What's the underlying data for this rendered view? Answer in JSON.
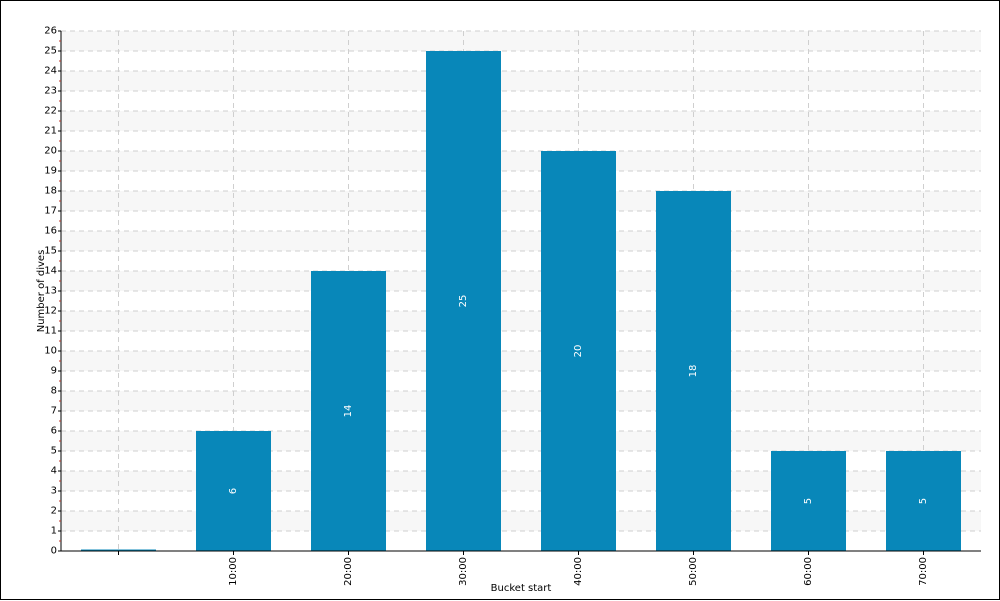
{
  "chart_data": {
    "type": "bar",
    "title": "",
    "xlabel": "Bucket start",
    "ylabel": "Number of dives",
    "categories": [
      "",
      "10:00",
      "20:00",
      "30:00",
      "40:00",
      "50:00",
      "60:00",
      "70:00"
    ],
    "values": [
      0,
      6,
      14,
      25,
      20,
      18,
      5,
      5
    ],
    "data_labels": [
      "",
      "6",
      "14",
      "25",
      "20",
      "18",
      "5",
      "5"
    ],
    "ylim": [
      0,
      26
    ],
    "yticks": [
      "0",
      "1",
      "2",
      "3",
      "4",
      "5",
      "6",
      "7",
      "8",
      "9",
      "10",
      "11",
      "12",
      "13",
      "14",
      "15",
      "16",
      "17",
      "18",
      "19",
      "20",
      "21",
      "22",
      "23",
      "24",
      "25",
      "26"
    ],
    "grid": true,
    "legend": "none",
    "colors": {
      "bar": "#0887b9",
      "bar_label": "#ffffff",
      "grid": "#cfcfcf",
      "band": "#f7f7f7",
      "axis": "#000000",
      "minor_tick": "#c0392b"
    }
  }
}
